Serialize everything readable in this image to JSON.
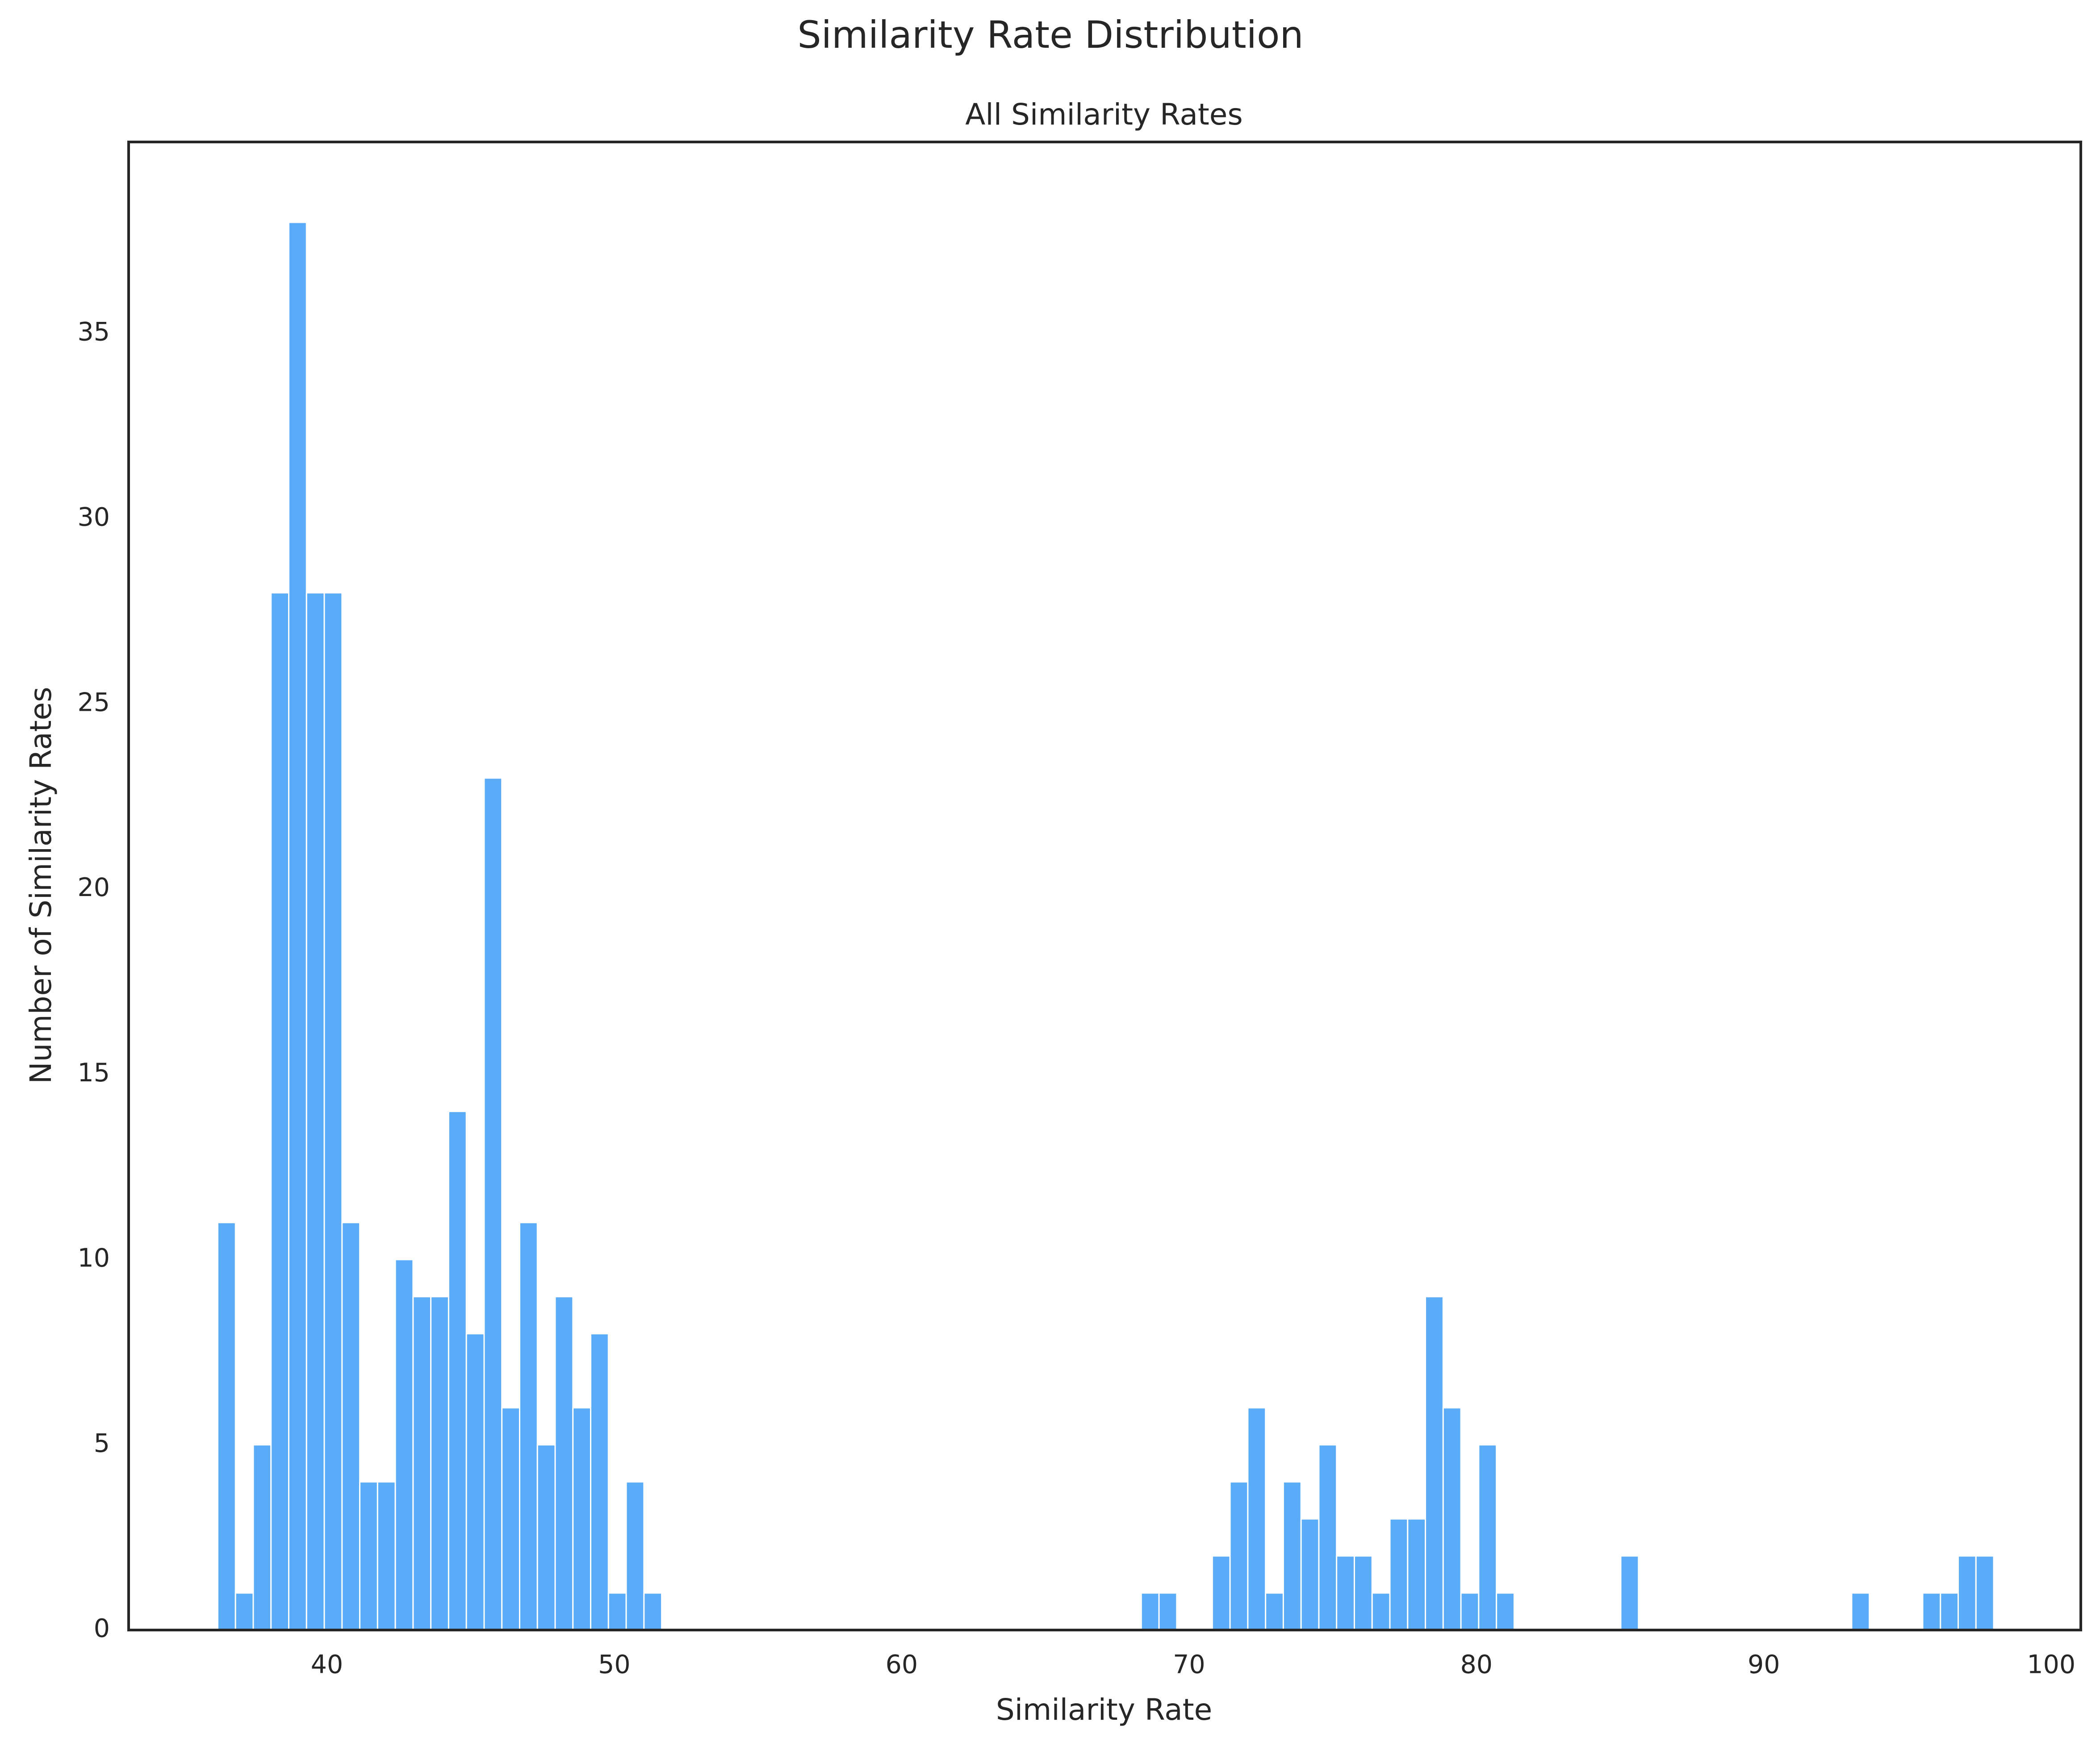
{
  "chart_data": {
    "type": "histogram",
    "title": "Similarity Rate Distribution",
    "subtitle": "All Similarity Rates",
    "x_label": "Similarity Rate",
    "y_label": "Number of Similarity Rates",
    "color": "#5aabf8",
    "bins": [
      36.2,
      36.818,
      37.436,
      38.054,
      38.672,
      39.29,
      39.908,
      40.526,
      41.144,
      41.762,
      42.38,
      42.998,
      43.616,
      44.234,
      44.852,
      45.47,
      46.088,
      46.706,
      47.324,
      47.942,
      48.56,
      49.178,
      49.796,
      50.414,
      51.032,
      51.65,
      52.268,
      52.886,
      53.504,
      54.122,
      54.74,
      55.358,
      55.976,
      56.594,
      57.212,
      57.83,
      58.448,
      59.066,
      59.684,
      60.302,
      60.92,
      61.538,
      62.156,
      62.774,
      63.392,
      64.01,
      64.628,
      65.246,
      65.864,
      66.482,
      67.1,
      67.718,
      68.336,
      68.954,
      69.572,
      70.19,
      70.808,
      71.426,
      72.044,
      72.662,
      73.28,
      73.898,
      74.516,
      75.134,
      75.752,
      76.37,
      76.988,
      77.606,
      78.224,
      78.842,
      79.46,
      80.078,
      80.696,
      81.314,
      81.932,
      82.55,
      83.168,
      83.786,
      84.404,
      85.022,
      85.64,
      86.258,
      86.876,
      87.494,
      88.112,
      88.73,
      89.348,
      89.966,
      90.584,
      91.202,
      91.82,
      92.438,
      93.056,
      93.674,
      94.292,
      94.91,
      95.528,
      96.146,
      96.764,
      97.382,
      98.0
    ],
    "values": [
      11,
      1,
      5,
      28,
      38,
      28,
      28,
      11,
      4,
      4,
      10,
      9,
      9,
      14,
      8,
      23,
      6,
      11,
      5,
      9,
      6,
      8,
      1,
      4,
      1,
      0,
      0,
      0,
      0,
      0,
      0,
      0,
      0,
      0,
      0,
      0,
      0,
      0,
      0,
      0,
      0,
      0,
      0,
      0,
      0,
      0,
      0,
      0,
      0,
      0,
      0,
      0,
      1,
      1,
      0,
      0,
      2,
      4,
      6,
      1,
      4,
      3,
      5,
      2,
      2,
      1,
      3,
      3,
      9,
      6,
      1,
      5,
      1,
      0,
      0,
      0,
      0,
      0,
      0,
      2,
      0,
      0,
      0,
      0,
      0,
      0,
      0,
      0,
      0,
      0,
      0,
      0,
      1,
      0,
      0,
      0,
      1,
      1,
      2,
      2
    ],
    "xlim": [
      33.1,
      101.03
    ],
    "ylim": [
      0,
      40.17
    ],
    "xticks": [
      40,
      50,
      60,
      70,
      80,
      90,
      100
    ],
    "yticks": [
      0,
      5,
      10,
      15,
      20,
      25,
      30,
      35
    ],
    "grid": false
  }
}
